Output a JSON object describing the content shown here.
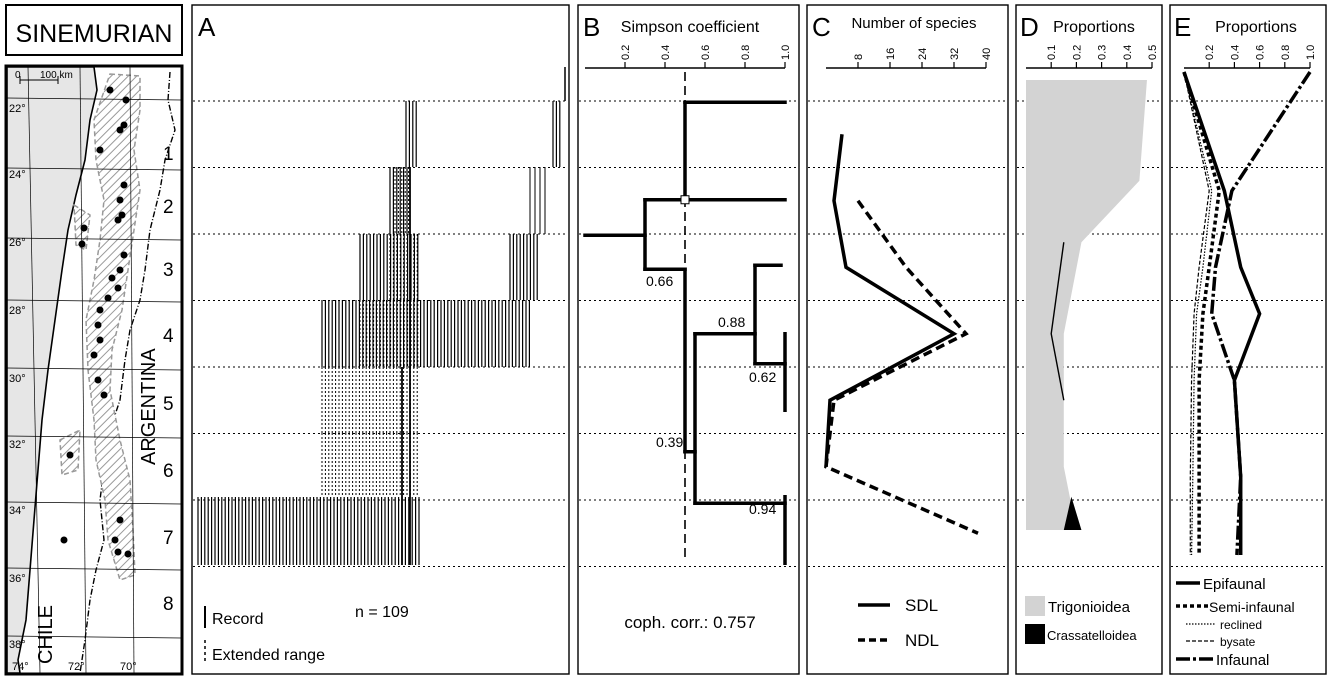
{
  "title": "SINEMURIAN",
  "map": {
    "scale_zero": "0",
    "scale_label": "100 km",
    "lat_labels": [
      "22°",
      "24°",
      "26°",
      "28°",
      "30°",
      "32°",
      "34°",
      "36°",
      "38°"
    ],
    "lon_labels": [
      "74°",
      "72°",
      "70°"
    ],
    "country_chile": "CHILE",
    "country_argentina": "ARGENTINA",
    "zones": [
      "1",
      "2",
      "3",
      "4",
      "5",
      "6",
      "7",
      "8"
    ]
  },
  "colors": {
    "trigonioidea": "#d3d3d3",
    "crassatelloidea": "#000000",
    "land": "#e6e6e6"
  },
  "chart_data": [
    {
      "panel": "A",
      "type": "range-chart",
      "letter": "A",
      "n_label": "n = 109",
      "legend": {
        "record": "Record",
        "extended": "Extended range"
      }
    },
    {
      "panel": "B",
      "type": "dendrogram",
      "letter": "B",
      "xlabel": "Simpson coefficient",
      "ticks": [
        "0.2",
        "0.4",
        "0.6",
        "0.8",
        "1.0"
      ],
      "xlim": [
        0,
        1.0
      ],
      "node_labels": [
        "0.66",
        "0.88",
        "0.62",
        "0.39",
        "0.94"
      ],
      "node_values": [
        0.66,
        0.88,
        0.62,
        0.39,
        0.94
      ],
      "cophenetic": "coph. corr.: 0.757",
      "cutoff": 0.5
    },
    {
      "panel": "C",
      "type": "line",
      "letter": "C",
      "xlabel": "Number of species",
      "ticks": [
        "8",
        "16",
        "24",
        "32",
        "40"
      ],
      "xlim": [
        0,
        40
      ],
      "zones": [
        1,
        2,
        3,
        4,
        5,
        6,
        7
      ],
      "series": [
        {
          "name": "SDL",
          "values": [
            4,
            2,
            5,
            32,
            1,
            0,
            null
          ]
        },
        {
          "name": "NDL",
          "values": [
            null,
            8,
            20,
            35,
            2,
            0,
            38
          ]
        }
      ]
    },
    {
      "panel": "D",
      "type": "area",
      "letter": "D",
      "xlabel": "Proportions",
      "ticks": [
        "0.1",
        "0.2",
        "0.3",
        "0.4",
        "0.5"
      ],
      "xlim": [
        0,
        0.5
      ],
      "series": [
        {
          "name": "Trigonioidea",
          "values": [
            0.48,
            0.45,
            0.22,
            0.15,
            0.15,
            0.15,
            0.2
          ]
        },
        {
          "name": "Crassatelloidea",
          "values": [
            0,
            0,
            0,
            0.02,
            0,
            0,
            0.12
          ]
        }
      ]
    },
    {
      "panel": "E",
      "type": "line",
      "letter": "E",
      "xlabel": "Proportions",
      "ticks": [
        "0.2",
        "0.4",
        "0.6",
        "0.8",
        "1.0"
      ],
      "xlim": [
        0,
        1.0
      ],
      "series": [
        {
          "name": "Epifaunal",
          "values": [
            0,
            0.32,
            0.45,
            0.6,
            0.4,
            0.45,
            0.45
          ]
        },
        {
          "name": "Semi-infaunal",
          "values": [
            0,
            0.28,
            0.2,
            0.15,
            0.12,
            0.12,
            0.12
          ]
        },
        {
          "name": "reclined",
          "values": [
            0,
            0.22,
            0.15,
            0.1,
            0.08,
            0.07,
            0.06
          ]
        },
        {
          "name": "bysate",
          "values": [
            0,
            0.2,
            0.12,
            0.08,
            0.06,
            0.05,
            0.05
          ]
        },
        {
          "name": "Infaunal",
          "values": [
            1.0,
            0.38,
            0.25,
            0.22,
            0.4,
            0.45,
            0.42
          ]
        }
      ]
    }
  ]
}
